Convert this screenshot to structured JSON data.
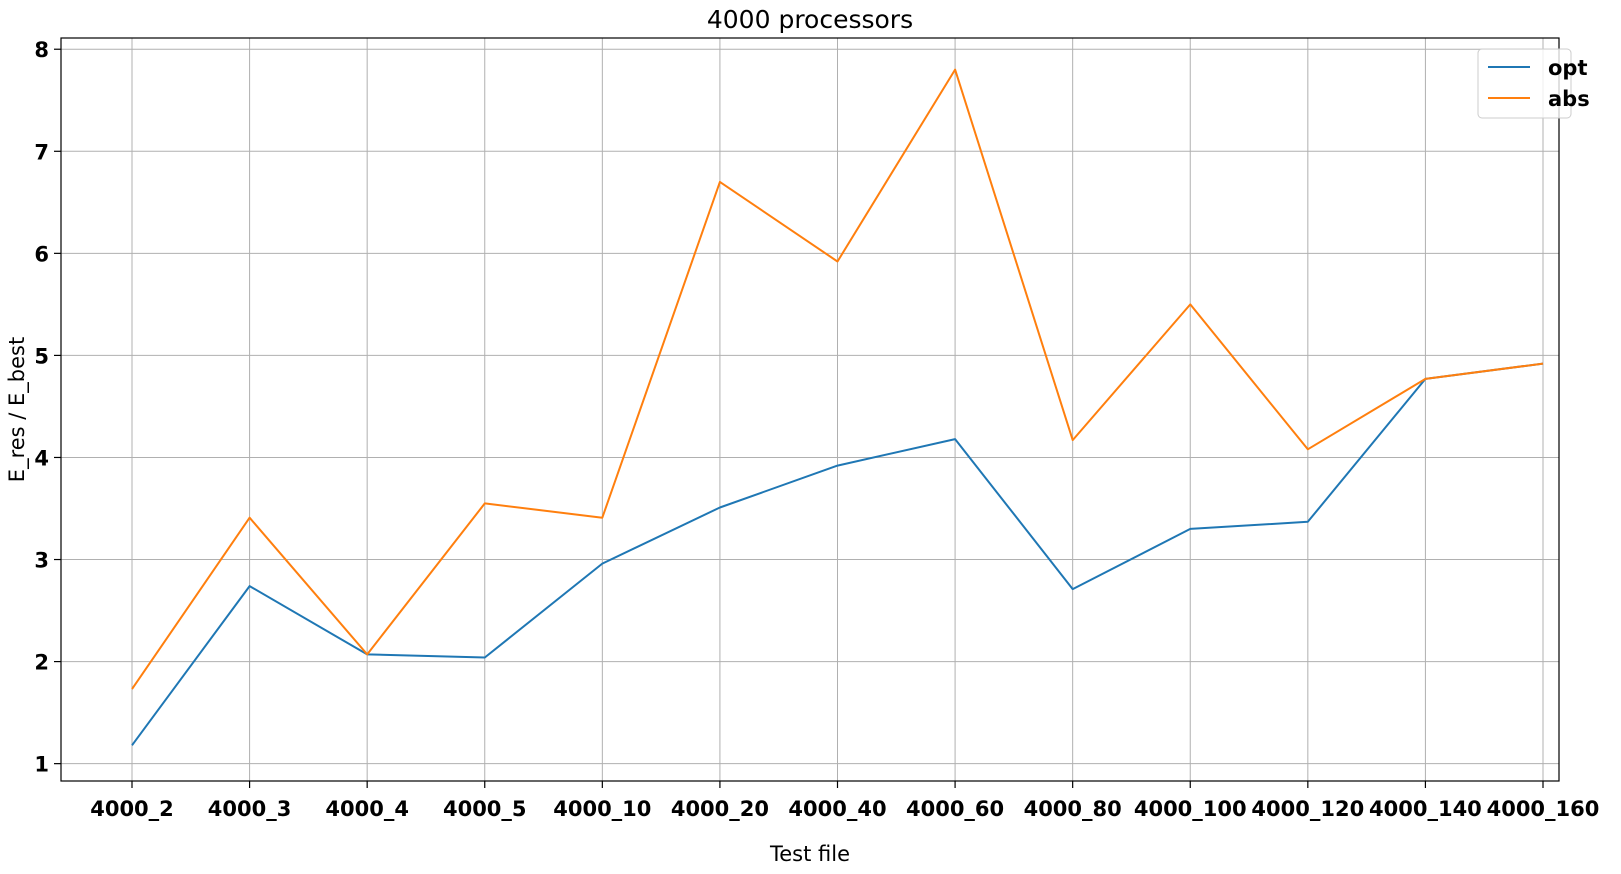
{
  "chart_data": {
    "type": "line",
    "title": "4000 processors",
    "xlabel": "Test file",
    "ylabel": "E_res / E_best",
    "categories": [
      "4000_2",
      "4000_3",
      "4000_4",
      "4000_5",
      "4000_10",
      "4000_20",
      "4000_40",
      "4000_60",
      "4000_80",
      "4000_100",
      "4000_120",
      "4000_140",
      "4000_160"
    ],
    "series": [
      {
        "name": "opt",
        "color": "#1f77b4",
        "values": [
          1.18,
          2.74,
          2.07,
          2.04,
          2.96,
          3.51,
          3.92,
          4.18,
          2.71,
          3.3,
          3.37,
          4.77,
          4.92
        ]
      },
      {
        "name": "abs",
        "color": "#ff7f0e",
        "values": [
          1.73,
          3.41,
          2.07,
          3.55,
          3.41,
          6.7,
          5.92,
          7.8,
          4.17,
          5.5,
          4.08,
          4.77,
          4.92
        ]
      }
    ],
    "ylim": [
      0.83,
      8.11
    ],
    "yticks": [
      1,
      2,
      3,
      4,
      5,
      6,
      7,
      8
    ],
    "grid": true,
    "legend_position": "top-right"
  }
}
